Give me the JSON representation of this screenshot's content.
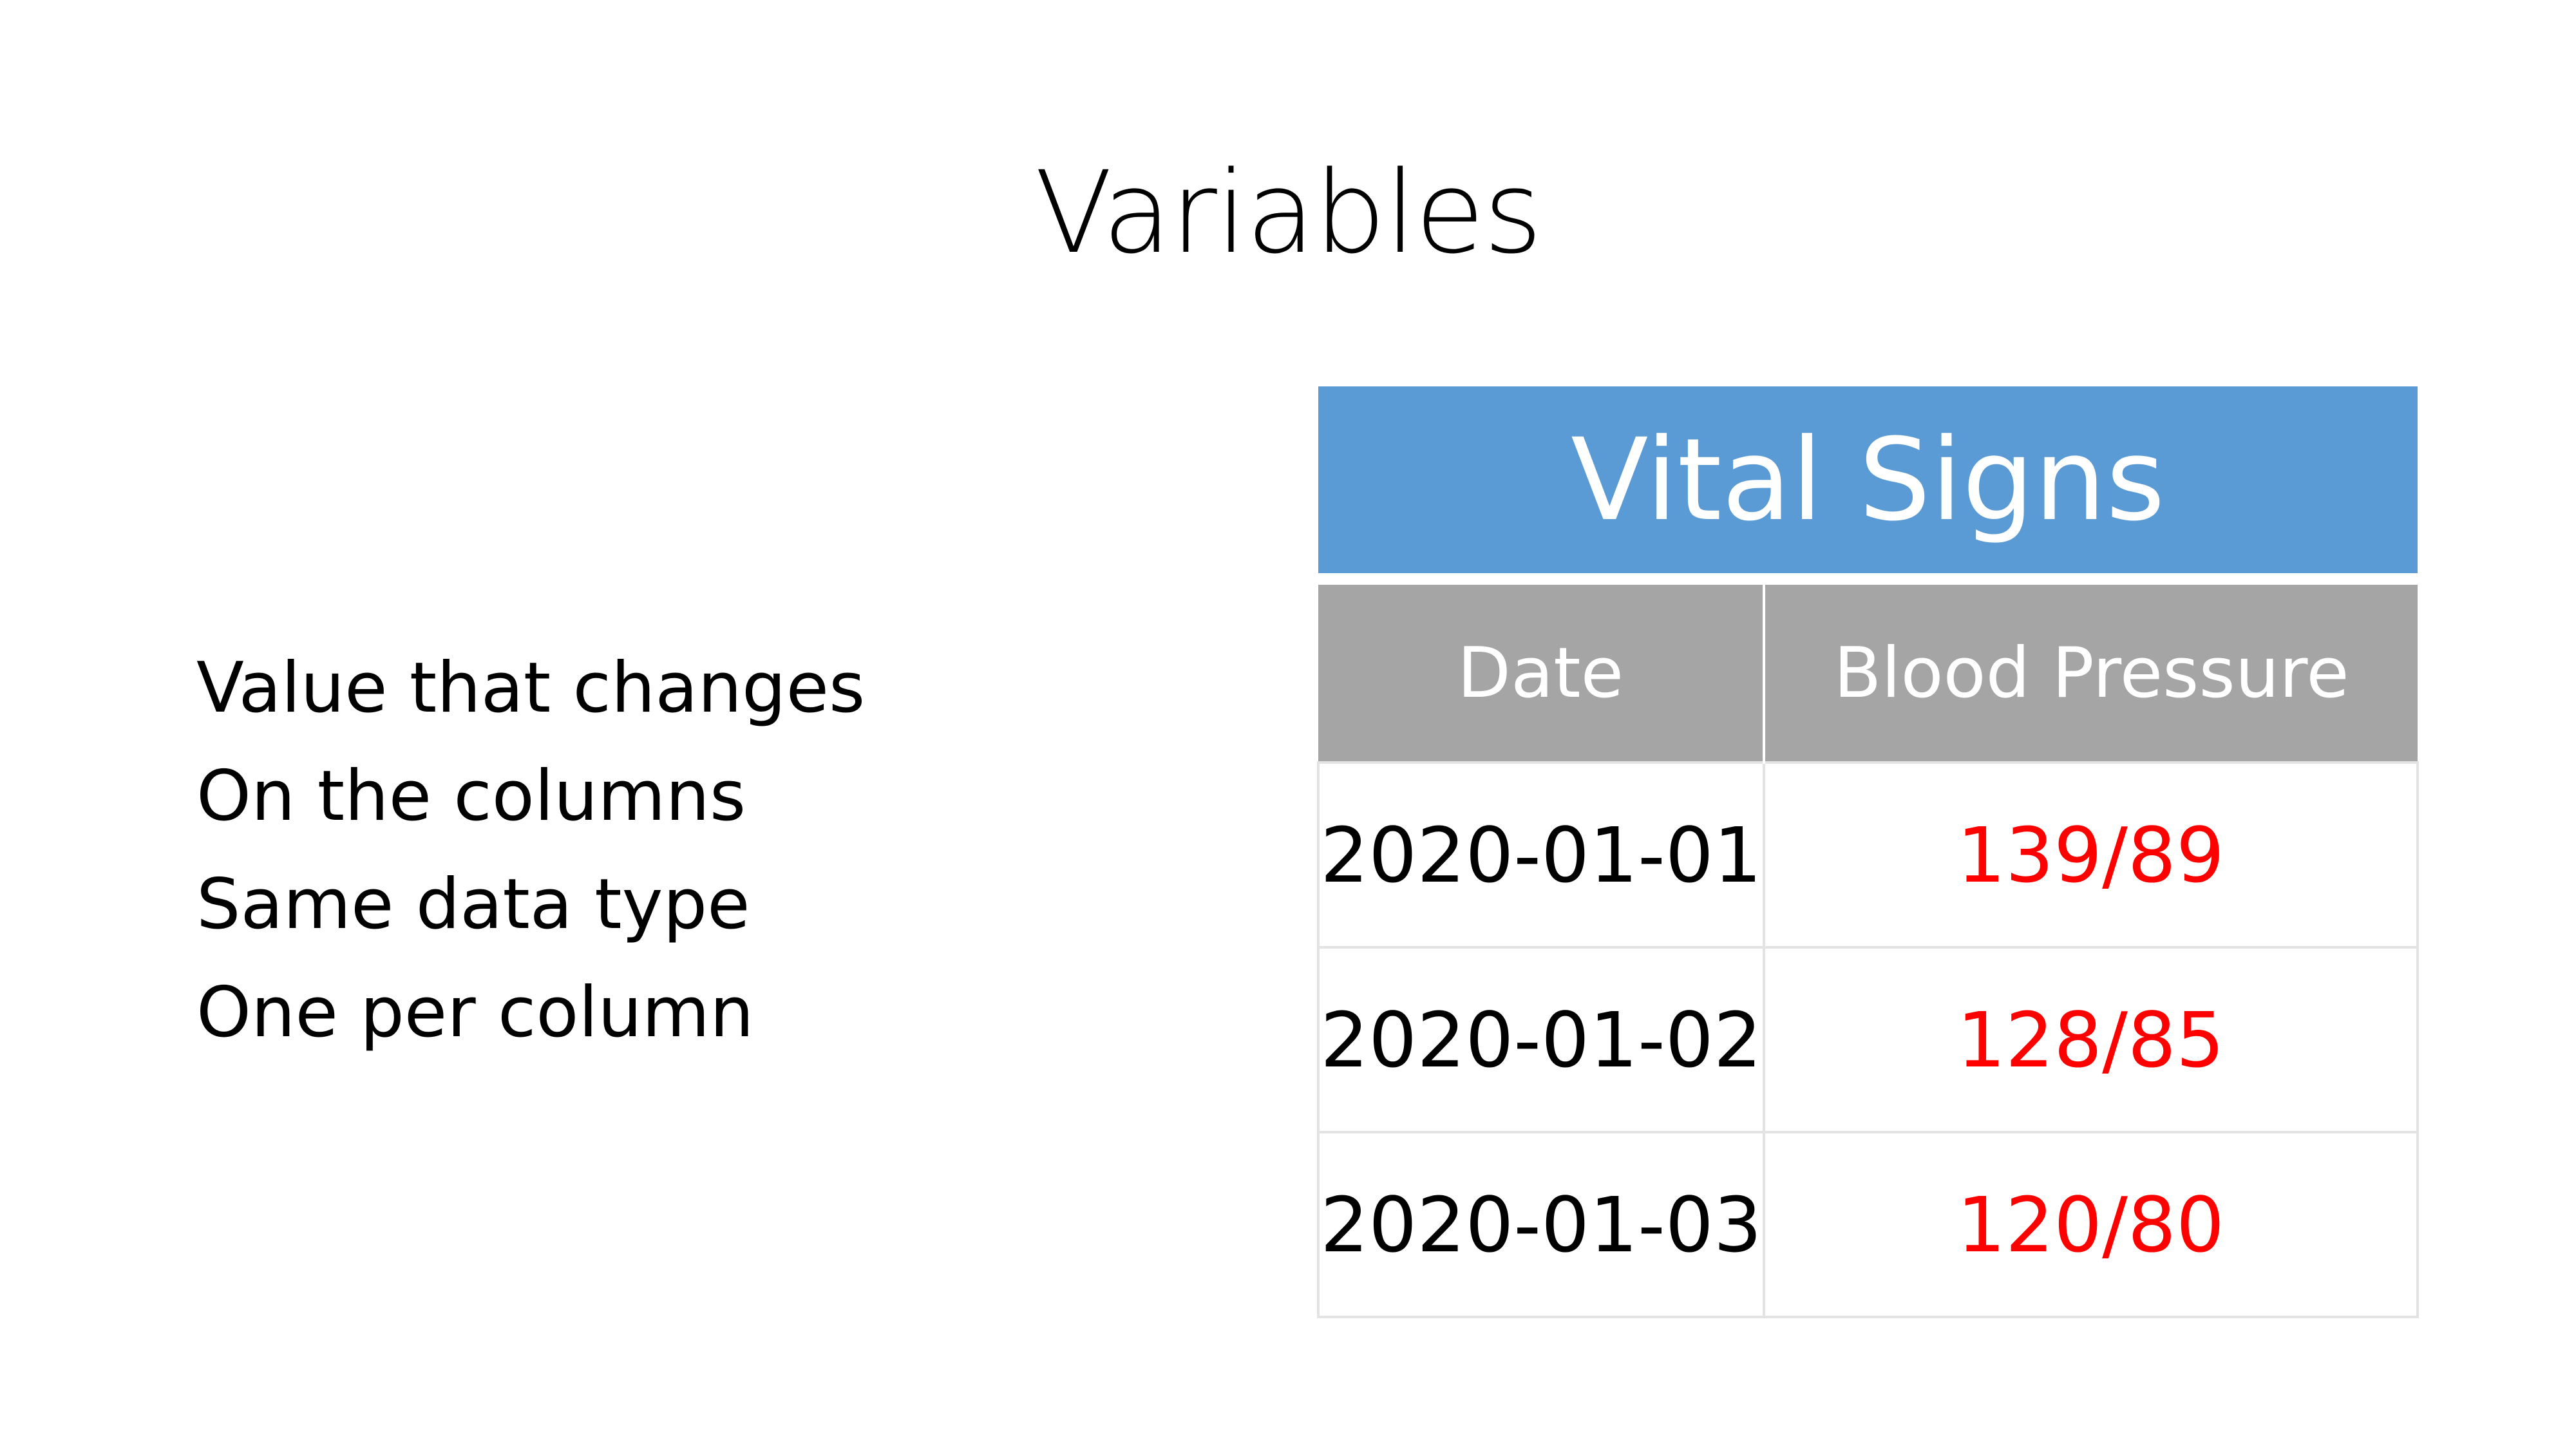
{
  "slide": {
    "title": "Variables"
  },
  "bullets": [
    "Value that changes",
    "On the columns",
    "Same data type",
    "One per column"
  ],
  "table": {
    "title": "Vital Signs",
    "columns": [
      "Date",
      "Blood Pressure"
    ],
    "rows": [
      {
        "date": "2020-01-01",
        "bp": "139/89"
      },
      {
        "date": "2020-01-02",
        "bp": "128/85"
      },
      {
        "date": "2020-01-03",
        "bp": "120/80"
      }
    ]
  },
  "colors": {
    "title_bar": "#5b9bd5",
    "header_bar": "#a5a5a5",
    "highlight_text": "#ff0000"
  }
}
